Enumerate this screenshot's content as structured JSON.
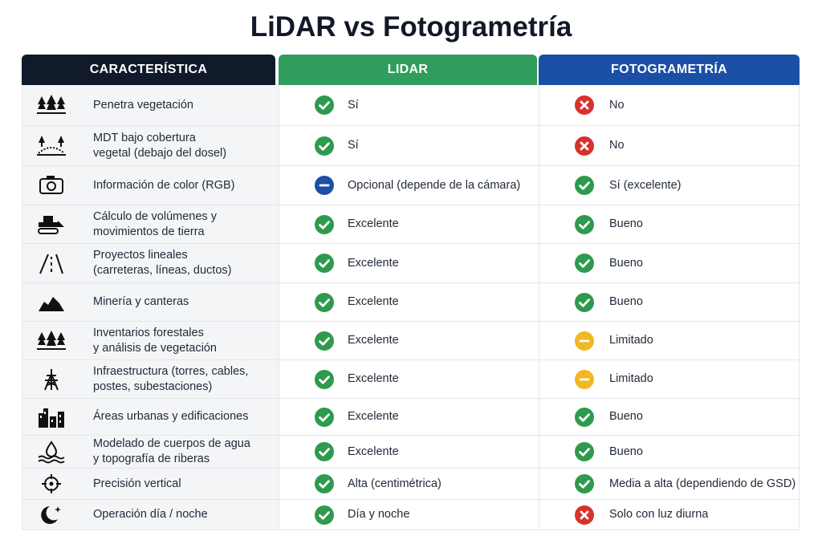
{
  "title": "LiDAR vs Fotogrametría",
  "table": {
    "headers": [
      "CARACTERÍSTICA",
      "LIDAR",
      "FOTOGRAMETRÍA"
    ],
    "rows": [
      {
        "feature": [
          "Penetra vegetación"
        ],
        "lidar": "Sí",
        "foto": "No"
      },
      {
        "feature": [
          "MDT bajo cobertura",
          "vegetal (debajo del dosel)"
        ],
        "lidar": "Sí",
        "foto": "No"
      },
      {
        "feature": [
          "Información de color (RGB)"
        ],
        "lidar": "Opcional (depende de la cámara)",
        "foto": "Sí (excelente)"
      },
      {
        "feature": [
          "Cálculo de volúmenes y",
          "movimientos de tierra"
        ],
        "lidar": "Excelente",
        "foto": "Bueno"
      },
      {
        "feature": [
          "Proyectos lineales",
          "(carreteras, líneas, ductos)"
        ],
        "lidar": "Excelente",
        "foto": "Bueno"
      },
      {
        "feature": [
          "Minería y canteras"
        ],
        "lidar": "Excelente",
        "foto": "Bueno"
      },
      {
        "feature": [
          "Inventarios forestales",
          "y análisis de vegetación"
        ],
        "lidar": "Excelente",
        "foto": "Limitado"
      },
      {
        "feature": [
          "Infraestructura (torres, cables,",
          "postes, subestaciones)"
        ],
        "lidar": "Excelente",
        "foto": "Limitado"
      },
      {
        "feature": [
          "Áreas urbanas y edificaciones"
        ],
        "lidar": "Excelente",
        "foto": "Bueno"
      },
      {
        "feature": [
          "Modelado de cuerpos de agua",
          "y topografía de riberas"
        ],
        "lidar": "Excelente",
        "foto": "Bueno"
      },
      {
        "feature": [
          "Precisión vertical"
        ],
        "lidar": "Alta (centimétrica)",
        "foto": "Media a alta (dependiendo de GSD)"
      },
      {
        "feature": [
          "Operación día / noche"
        ],
        "lidar": "Día y noche",
        "foto": "Solo con luz diurna"
      }
    ]
  }
}
